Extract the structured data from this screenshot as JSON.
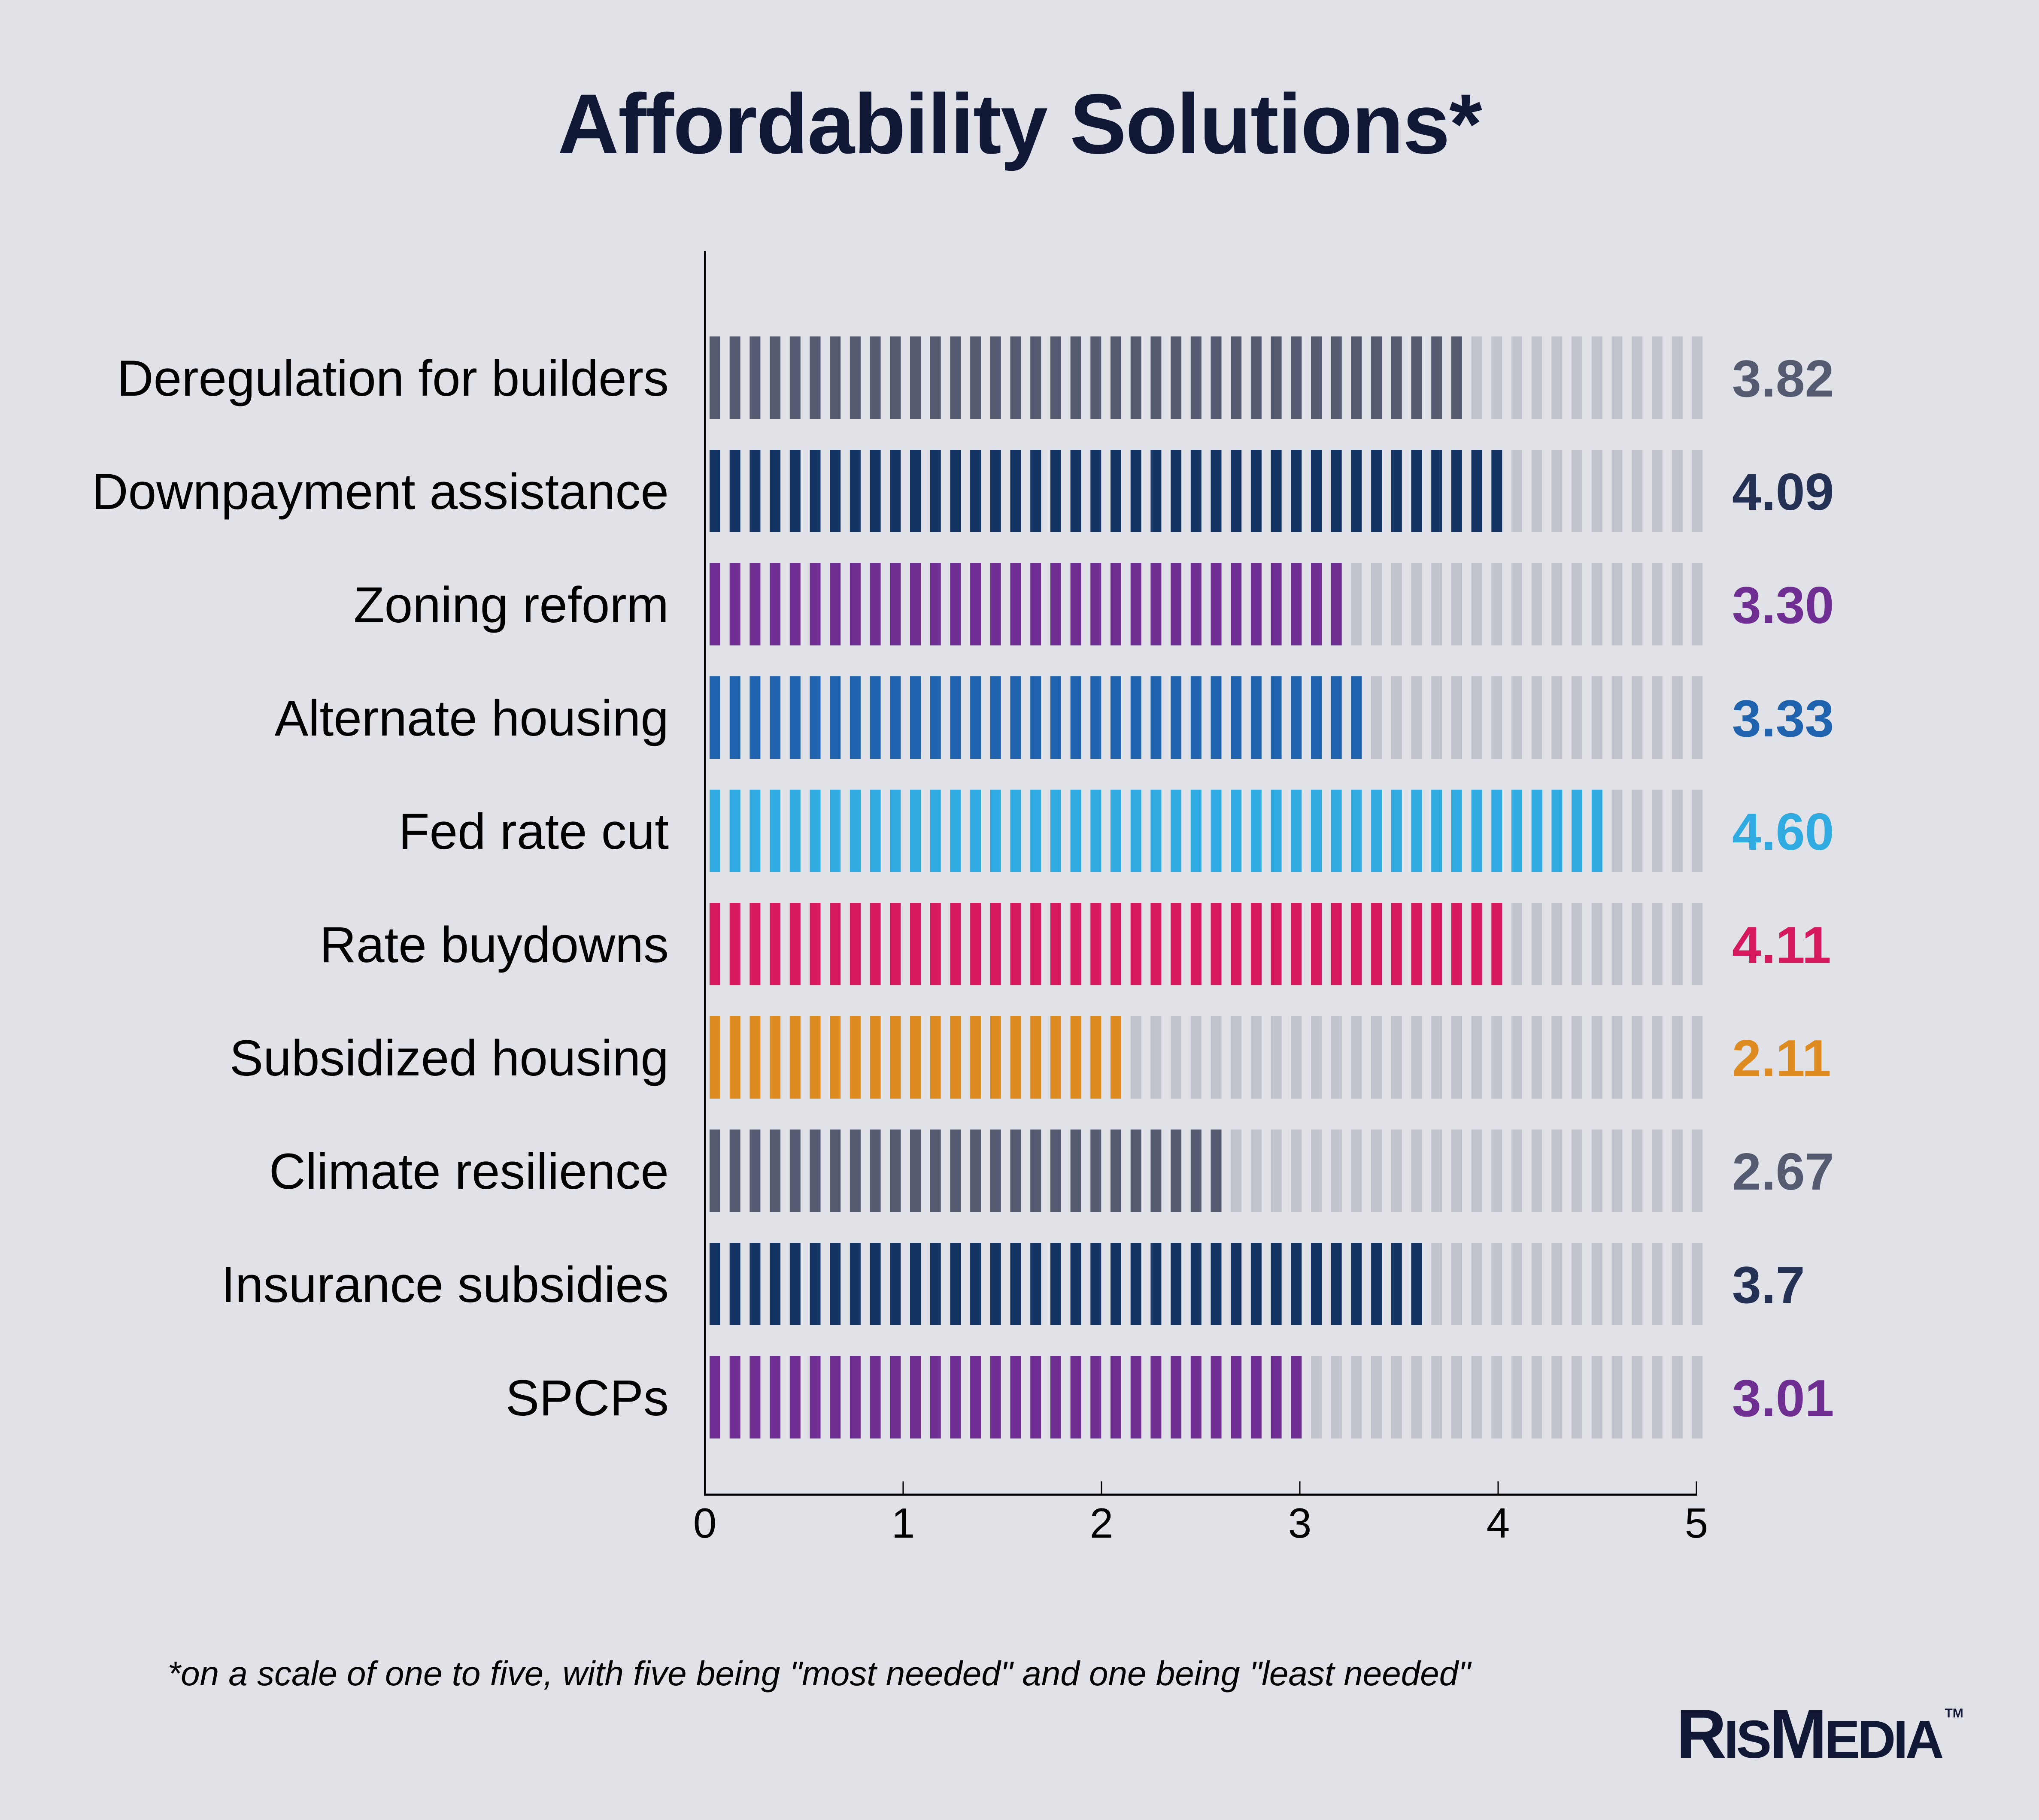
{
  "title": "Affordability Solutions*",
  "footnote": "*on a scale of one to five, with five being \"most needed\" and one being \"least needed\"",
  "logo": {
    "parts": [
      "R",
      "IS",
      "M",
      "EDIA"
    ],
    "trademark": "TM"
  },
  "colors": {
    "background": "#e1e2e7",
    "title": "#111836",
    "track": "#c0c2cc",
    "slate": "#545a70",
    "navy": "#143464",
    "purple": "#6f2e91",
    "blue": "#1f63ae",
    "sky": "#2fabe2",
    "red": "#d6195e",
    "orange": "#de8c22"
  },
  "chart_data": {
    "type": "bar",
    "orientation": "horizontal",
    "title": "Affordability Solutions*",
    "xlabel": "",
    "ylabel": "",
    "xlim": [
      0,
      5
    ],
    "x_ticks": [
      "0",
      "1",
      "2",
      "3",
      "4",
      "5"
    ],
    "grid": false,
    "legend": "none",
    "categories": [
      "Deregulation for builders",
      "Downpayment assistance",
      "Zoning reform",
      "Alternate housing",
      "Fed rate cut",
      "Rate buydowns",
      "Subsidized housing",
      "Climate resilience",
      "Insurance subsidies",
      "SPCPs"
    ],
    "values": [
      3.82,
      4.09,
      3.3,
      3.33,
      4.6,
      4.11,
      2.11,
      2.67,
      3.7,
      3.01
    ],
    "value_labels": [
      "3.82",
      "4.09",
      "3.30",
      "3.33",
      "4.60",
      "4.11",
      "2.11",
      "2.67",
      "3.7",
      "3.01"
    ],
    "bar_colors": [
      "#545a70",
      "#143464",
      "#6f2e91",
      "#1f63ae",
      "#2fabe2",
      "#d6195e",
      "#de8c22",
      "#545a70",
      "#143464",
      "#6f2e91"
    ],
    "label_colors": [
      "#545a70",
      "#243155",
      "#6f2e91",
      "#1f63ae",
      "#2fabe2",
      "#d6195e",
      "#de8c22",
      "#545a70",
      "#243155",
      "#6f2e91"
    ],
    "track_color": "#c0c2cc",
    "footnote": "*on a scale of one to five, with five being \"most needed\" and one being \"least needed\""
  }
}
